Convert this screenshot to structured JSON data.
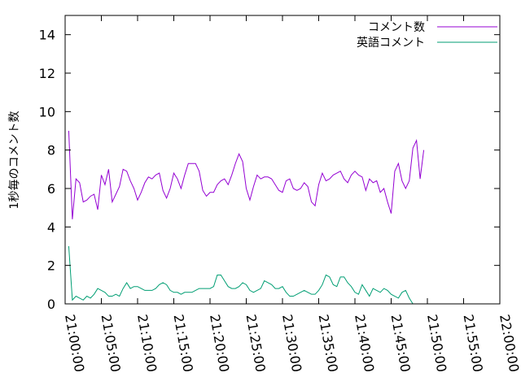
{
  "chart_data": {
    "type": "line",
    "title": "",
    "xlabel": "",
    "ylabel": "1秒毎のコメント数",
    "ylim": [
      0,
      15
    ],
    "xlim_minutes": [
      0,
      60
    ],
    "grid": false,
    "legend_position": "top-right",
    "x_tick_labels": [
      "21:00:00",
      "21:05:00",
      "21:10:00",
      "21:15:00",
      "21:20:00",
      "21:25:00",
      "21:30:00",
      "21:35:00",
      "21:40:00",
      "21:45:00",
      "21:50:00",
      "21:55:00",
      "22:00:00"
    ],
    "y_ticks": [
      0,
      2,
      4,
      6,
      8,
      10,
      12,
      14
    ],
    "sample_interval_seconds": 30,
    "series": [
      {
        "name": "コメント数",
        "color": "#9400d3",
        "values": [
          9.0,
          4.4,
          6.5,
          6.3,
          5.3,
          5.4,
          5.6,
          5.7,
          4.9,
          6.7,
          6.2,
          7.0,
          5.3,
          5.7,
          6.1,
          7.0,
          6.9,
          6.4,
          6.0,
          5.4,
          5.8,
          6.3,
          6.6,
          6.5,
          6.7,
          6.8,
          5.9,
          5.5,
          6.0,
          6.8,
          6.5,
          6.0,
          6.7,
          7.3,
          7.3,
          7.3,
          6.9,
          5.9,
          5.6,
          5.8,
          5.8,
          6.2,
          6.4,
          6.5,
          6.2,
          6.7,
          7.3,
          7.8,
          7.4,
          6.0,
          5.4,
          6.1,
          6.7,
          6.5,
          6.6,
          6.6,
          6.5,
          6.2,
          5.9,
          5.8,
          6.4,
          6.5,
          6.0,
          5.9,
          6.0,
          6.3,
          6.1,
          5.3,
          5.1,
          6.2,
          6.8,
          6.4,
          6.5,
          6.7,
          6.8,
          6.9,
          6.5,
          6.3,
          6.7,
          6.9,
          6.7,
          6.6,
          5.9,
          6.5,
          6.3,
          6.4,
          5.8,
          6.0,
          5.3,
          4.7,
          6.9,
          7.3,
          6.4,
          6.0,
          6.4,
          8.1,
          8.5,
          6.5,
          8.0
        ]
      },
      {
        "name": "英語コメント",
        "color": "#009e73",
        "values": [
          3.0,
          0.2,
          0.4,
          0.3,
          0.2,
          0.4,
          0.3,
          0.5,
          0.8,
          0.7,
          0.6,
          0.4,
          0.4,
          0.5,
          0.4,
          0.8,
          1.1,
          0.8,
          0.9,
          0.9,
          0.8,
          0.7,
          0.7,
          0.7,
          0.8,
          1.0,
          1.1,
          1.0,
          0.7,
          0.6,
          0.6,
          0.5,
          0.6,
          0.6,
          0.6,
          0.7,
          0.8,
          0.8,
          0.8,
          0.8,
          0.9,
          1.5,
          1.5,
          1.2,
          0.9,
          0.8,
          0.8,
          0.9,
          1.1,
          1.0,
          0.7,
          0.6,
          0.7,
          0.8,
          1.2,
          1.1,
          1.0,
          0.8,
          0.8,
          0.9,
          0.6,
          0.4,
          0.4,
          0.5,
          0.6,
          0.7,
          0.6,
          0.5,
          0.5,
          0.7,
          1.0,
          1.5,
          1.4,
          1.0,
          0.9,
          1.4,
          1.4,
          1.1,
          0.9,
          0.6,
          0.5,
          1.0,
          0.7,
          0.4,
          0.8,
          0.7,
          0.6,
          0.8,
          0.7,
          0.5,
          0.4,
          0.3,
          0.6,
          0.7,
          0.3,
          0.0
        ]
      }
    ]
  }
}
